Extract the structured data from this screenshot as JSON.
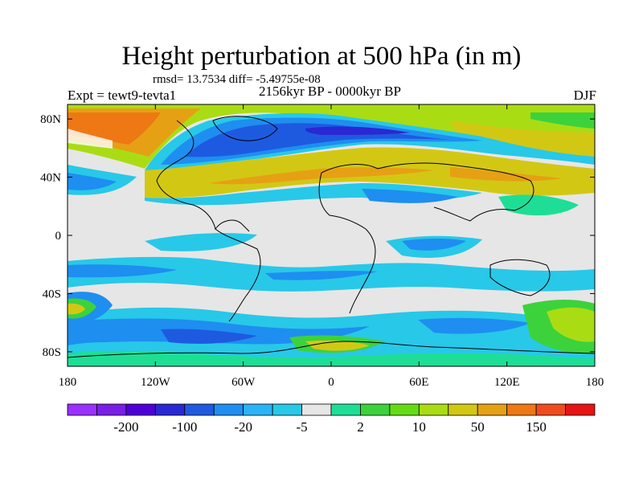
{
  "figure": {
    "title": "Height perturbation at 500 hPa (in m)",
    "stats": "rmsd= 13.7534 diff= -5.49755e-08",
    "experiment": "Expt = tewt9-tevta1",
    "period": "2156kyr BP - 0000kyr BP",
    "season": "DJF"
  },
  "map": {
    "lon_range": [
      -180,
      180
    ],
    "lat_range": [
      -90,
      90
    ],
    "lon_ticks": [
      {
        "value": -180,
        "label": "180"
      },
      {
        "value": -120,
        "label": "120W"
      },
      {
        "value": -60,
        "label": "60W"
      },
      {
        "value": 0,
        "label": "0"
      },
      {
        "value": 60,
        "label": "60E"
      },
      {
        "value": 120,
        "label": "120E"
      },
      {
        "value": 180,
        "label": "180"
      }
    ],
    "lat_ticks": [
      {
        "value": 80,
        "label": "80N"
      },
      {
        "value": 40,
        "label": "40N"
      },
      {
        "value": 0,
        "label": "0"
      },
      {
        "value": -40,
        "label": "40S"
      },
      {
        "value": -80,
        "label": "80S"
      }
    ]
  },
  "colorbar": {
    "colors": [
      "#9b30ff",
      "#7a1ee6",
      "#4f00d8",
      "#2a28d2",
      "#1e5ae0",
      "#1e8ef0",
      "#2ab4f5",
      "#28c8e8",
      "#e6e6e6",
      "#1ede96",
      "#3cd23c",
      "#64dc14",
      "#aadc14",
      "#d2c814",
      "#e6a014",
      "#ee7814",
      "#f04b1e",
      "#e61414"
    ],
    "labels": [
      {
        "after_bin": 1,
        "text": "-200"
      },
      {
        "after_bin": 3,
        "text": "-100"
      },
      {
        "after_bin": 5,
        "text": "-20"
      },
      {
        "after_bin": 7,
        "text": "-5"
      },
      {
        "after_bin": 9,
        "text": "2"
      },
      {
        "after_bin": 11,
        "text": "10"
      },
      {
        "after_bin": 13,
        "text": "50"
      },
      {
        "after_bin": 15,
        "text": "150"
      }
    ]
  }
}
